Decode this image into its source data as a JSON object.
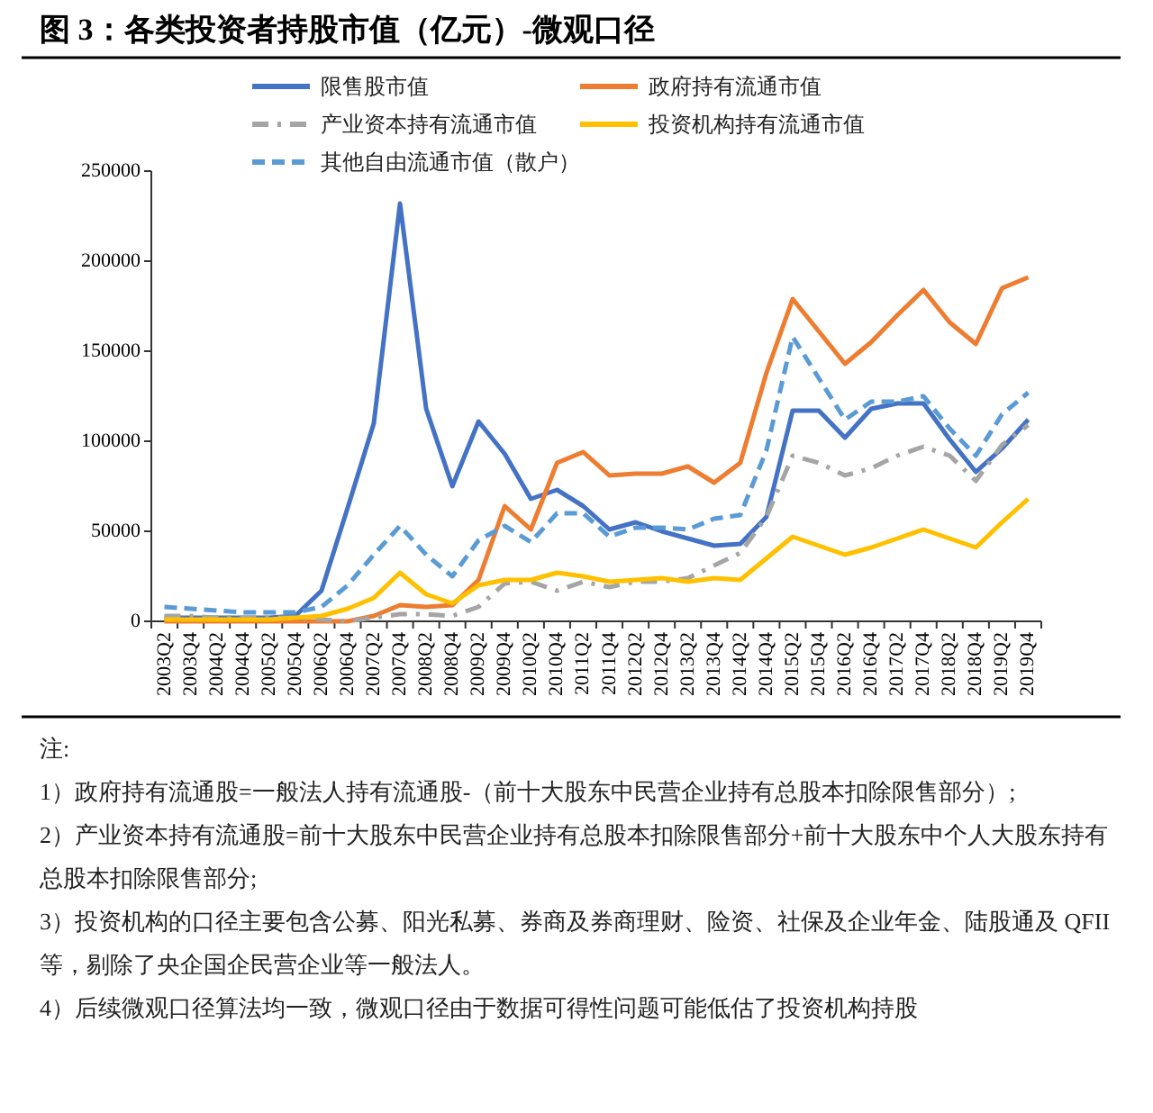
{
  "chart_data": {
    "type": "line",
    "title": "图 3：各类投资者持股市值（亿元）-微观口径",
    "categories": [
      "2003Q2",
      "2003Q4",
      "2004Q2",
      "2004Q4",
      "2005Q2",
      "2005Q4",
      "2006Q2",
      "2006Q4",
      "2007Q2",
      "2007Q4",
      "2008Q2",
      "2008Q4",
      "2009Q2",
      "2009Q4",
      "2010Q2",
      "2010Q4",
      "2011Q2",
      "2011Q4",
      "2012Q2",
      "2012Q4",
      "2013Q2",
      "2013Q4",
      "2014Q2",
      "2014Q4",
      "2015Q2",
      "2015Q4",
      "2016Q2",
      "2016Q4",
      "2017Q2",
      "2017Q4",
      "2018Q2",
      "2018Q4",
      "2019Q2",
      "2019Q4"
    ],
    "series": [
      {
        "name": "限售股市值",
        "color": "#4472c4",
        "line_style": "solid",
        "values": [
          2000,
          2000,
          2000,
          2000,
          2000,
          3000,
          17000,
          63000,
          110000,
          232000,
          118000,
          75000,
          111000,
          93000,
          68000,
          73000,
          64000,
          51000,
          55000,
          50000,
          46000,
          42000,
          43000,
          58000,
          117000,
          117000,
          102000,
          118000,
          121000,
          121000,
          101000,
          83000,
          96000,
          112000
        ]
      },
      {
        "name": "政府持有流通市值",
        "color": "#ed7d31",
        "line_style": "solid",
        "values": [
          0,
          0,
          0,
          0,
          0,
          0,
          0,
          0,
          3000,
          9000,
          8000,
          9000,
          23000,
          64000,
          51000,
          88000,
          94000,
          81000,
          82000,
          82000,
          86000,
          77000,
          88000,
          138000,
          179000,
          161000,
          143000,
          155000,
          170000,
          184000,
          166000,
          154000,
          185000,
          191000
        ]
      },
      {
        "name": "产业资本持有流通市值",
        "color": "#a5a5a5",
        "line_style": "dashdot",
        "values": [
          3000,
          3000,
          2000,
          2000,
          2000,
          2000,
          1000,
          0,
          2000,
          4000,
          4000,
          3000,
          8000,
          21000,
          22000,
          17000,
          22000,
          19000,
          22000,
          22000,
          24000,
          31000,
          38000,
          58000,
          92000,
          88000,
          81000,
          85000,
          92000,
          97000,
          92000,
          78000,
          98000,
          109000
        ]
      },
      {
        "name": "投资机构持有流通市值",
        "color": "#ffc000",
        "line_style": "solid",
        "values": [
          1000,
          1000,
          1000,
          1000,
          1000,
          2000,
          3000,
          7000,
          13000,
          27000,
          15000,
          10000,
          20000,
          23000,
          23000,
          27000,
          25000,
          22000,
          23000,
          24000,
          22000,
          24000,
          23000,
          35000,
          47000,
          42000,
          37000,
          41000,
          46000,
          51000,
          46000,
          41000,
          55000,
          68000
        ]
      },
      {
        "name": "其他自由流通市值（散户）",
        "color": "#5b9bd5",
        "line_style": "dashed",
        "values": [
          8000,
          7000,
          6000,
          5000,
          5000,
          5000,
          8000,
          20000,
          37000,
          53000,
          37000,
          25000,
          45000,
          53000,
          44000,
          60000,
          60000,
          47000,
          52000,
          52000,
          51000,
          57000,
          59000,
          95000,
          158000,
          135000,
          112000,
          122000,
          122000,
          125000,
          107000,
          92000,
          115000,
          127000
        ]
      }
    ],
    "ylim": [
      0,
      250000
    ],
    "yticks": [
      0,
      50000,
      100000,
      150000,
      200000,
      250000
    ],
    "legend": "top",
    "annotations": [
      "注:",
      "1）政府持有流通股=一般法人持有流通股-（前十大股东中民营企业持有总股本扣除限售部分）;",
      "2）产业资本持有流通股=前十大股东中民营企业持有总股本扣除限售部分+前十大股东中个人大股东持有总股本扣除限售部分;",
      "3）投资机构的口径主要包含公募、阳光私募、券商及券商理财、险资、社保及企业年金、陆股通及 QFII 等，剔除了央企国企民营企业等一般法人。",
      "4）后续微观口径算法均一致，微观口径由于数据可得性问题可能低估了投资机构持股"
    ]
  }
}
